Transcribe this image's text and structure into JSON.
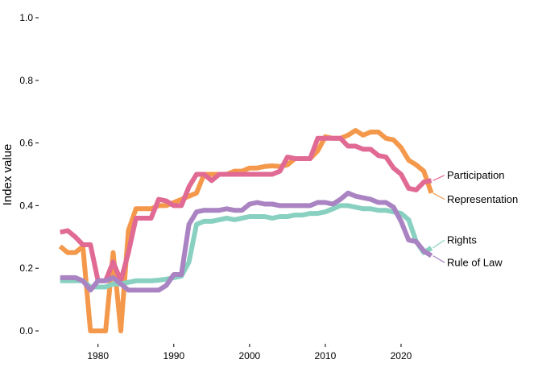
{
  "chart_data": {
    "type": "line",
    "ylabel": "Index value",
    "xlabel": "",
    "xlim": [
      1974.5,
      2025
    ],
    "ylim": [
      -0.03,
      1.03
    ],
    "x_ticks": [
      {
        "value": 1980,
        "label": "1980"
      },
      {
        "value": 1990,
        "label": "1990"
      },
      {
        "value": 2000,
        "label": "2000"
      },
      {
        "value": 2010,
        "label": "2010"
      },
      {
        "value": 2020,
        "label": "2020"
      }
    ],
    "y_ticks": [
      {
        "value": 0.0,
        "label": "0.0"
      },
      {
        "value": 0.2,
        "label": "0.2"
      },
      {
        "value": 0.4,
        "label": "0.4"
      },
      {
        "value": 0.6,
        "label": "0.6"
      },
      {
        "value": 0.8,
        "label": "0.8"
      },
      {
        "value": 1.0,
        "label": "1.0"
      }
    ],
    "grid": false,
    "legend": "direct labels at line ends (right)",
    "x": [
      1975,
      1976,
      1977,
      1978,
      1979,
      1980,
      1981,
      1982,
      1983,
      1984,
      1985,
      1986,
      1987,
      1988,
      1989,
      1990,
      1991,
      1992,
      1993,
      1994,
      1995,
      1996,
      1997,
      1998,
      1999,
      2000,
      2001,
      2002,
      2003,
      2004,
      2005,
      2006,
      2007,
      2008,
      2009,
      2010,
      2011,
      2012,
      2013,
      2014,
      2015,
      2016,
      2017,
      2018,
      2019,
      2020,
      2021,
      2022,
      2023,
      2024
    ],
    "series": [
      {
        "name": "Representation",
        "color": "#F4994C",
        "values": [
          0.27,
          0.25,
          0.25,
          0.27,
          0.0,
          0.0,
          0.0,
          0.25,
          0.0,
          0.32,
          0.39,
          0.39,
          0.39,
          0.4,
          0.4,
          0.41,
          0.42,
          0.43,
          0.44,
          0.5,
          0.5,
          0.5,
          0.5,
          0.51,
          0.51,
          0.52,
          0.52,
          0.525,
          0.527,
          0.525,
          0.53,
          0.55,
          0.55,
          0.55,
          0.575,
          0.62,
          0.615,
          0.615,
          0.625,
          0.64,
          0.625,
          0.635,
          0.635,
          0.615,
          0.61,
          0.585,
          0.545,
          0.53,
          0.51,
          0.44
        ],
        "end_label_y": 0.42
      },
      {
        "name": "Participation",
        "color": "#E06A93",
        "values": [
          0.315,
          0.32,
          0.3,
          0.275,
          0.275,
          0.16,
          0.16,
          0.22,
          0.16,
          0.25,
          0.36,
          0.36,
          0.36,
          0.42,
          0.415,
          0.4,
          0.4,
          0.46,
          0.5,
          0.5,
          0.48,
          0.5,
          0.5,
          0.5,
          0.5,
          0.5,
          0.5,
          0.5,
          0.5,
          0.51,
          0.555,
          0.55,
          0.55,
          0.55,
          0.615,
          0.615,
          0.615,
          0.615,
          0.59,
          0.59,
          0.58,
          0.58,
          0.56,
          0.555,
          0.52,
          0.5,
          0.455,
          0.45,
          0.475,
          0.48
        ],
        "end_label_y": 0.497
      },
      {
        "name": "Rights",
        "color": "#88D0C0",
        "values": [
          0.16,
          0.16,
          0.16,
          0.16,
          0.14,
          0.14,
          0.14,
          0.15,
          0.15,
          0.155,
          0.16,
          0.16,
          0.16,
          0.162,
          0.165,
          0.17,
          0.175,
          0.22,
          0.34,
          0.35,
          0.35,
          0.355,
          0.36,
          0.355,
          0.36,
          0.365,
          0.365,
          0.365,
          0.36,
          0.365,
          0.365,
          0.37,
          0.37,
          0.375,
          0.375,
          0.38,
          0.39,
          0.4,
          0.4,
          0.395,
          0.39,
          0.39,
          0.385,
          0.385,
          0.38,
          0.375,
          0.355,
          0.285,
          0.25,
          0.265
        ],
        "end_label_y": 0.29
      },
      {
        "name": "Rule of Law",
        "color": "#A983C2",
        "values": [
          0.17,
          0.17,
          0.17,
          0.16,
          0.13,
          0.16,
          0.16,
          0.17,
          0.15,
          0.13,
          0.13,
          0.13,
          0.13,
          0.13,
          0.145,
          0.18,
          0.18,
          0.34,
          0.38,
          0.385,
          0.385,
          0.385,
          0.39,
          0.385,
          0.385,
          0.405,
          0.41,
          0.405,
          0.405,
          0.4,
          0.4,
          0.4,
          0.4,
          0.4,
          0.41,
          0.41,
          0.405,
          0.42,
          0.44,
          0.43,
          0.425,
          0.42,
          0.41,
          0.41,
          0.395,
          0.35,
          0.29,
          0.285,
          0.255,
          0.24
        ],
        "end_label_y": 0.218
      }
    ]
  }
}
